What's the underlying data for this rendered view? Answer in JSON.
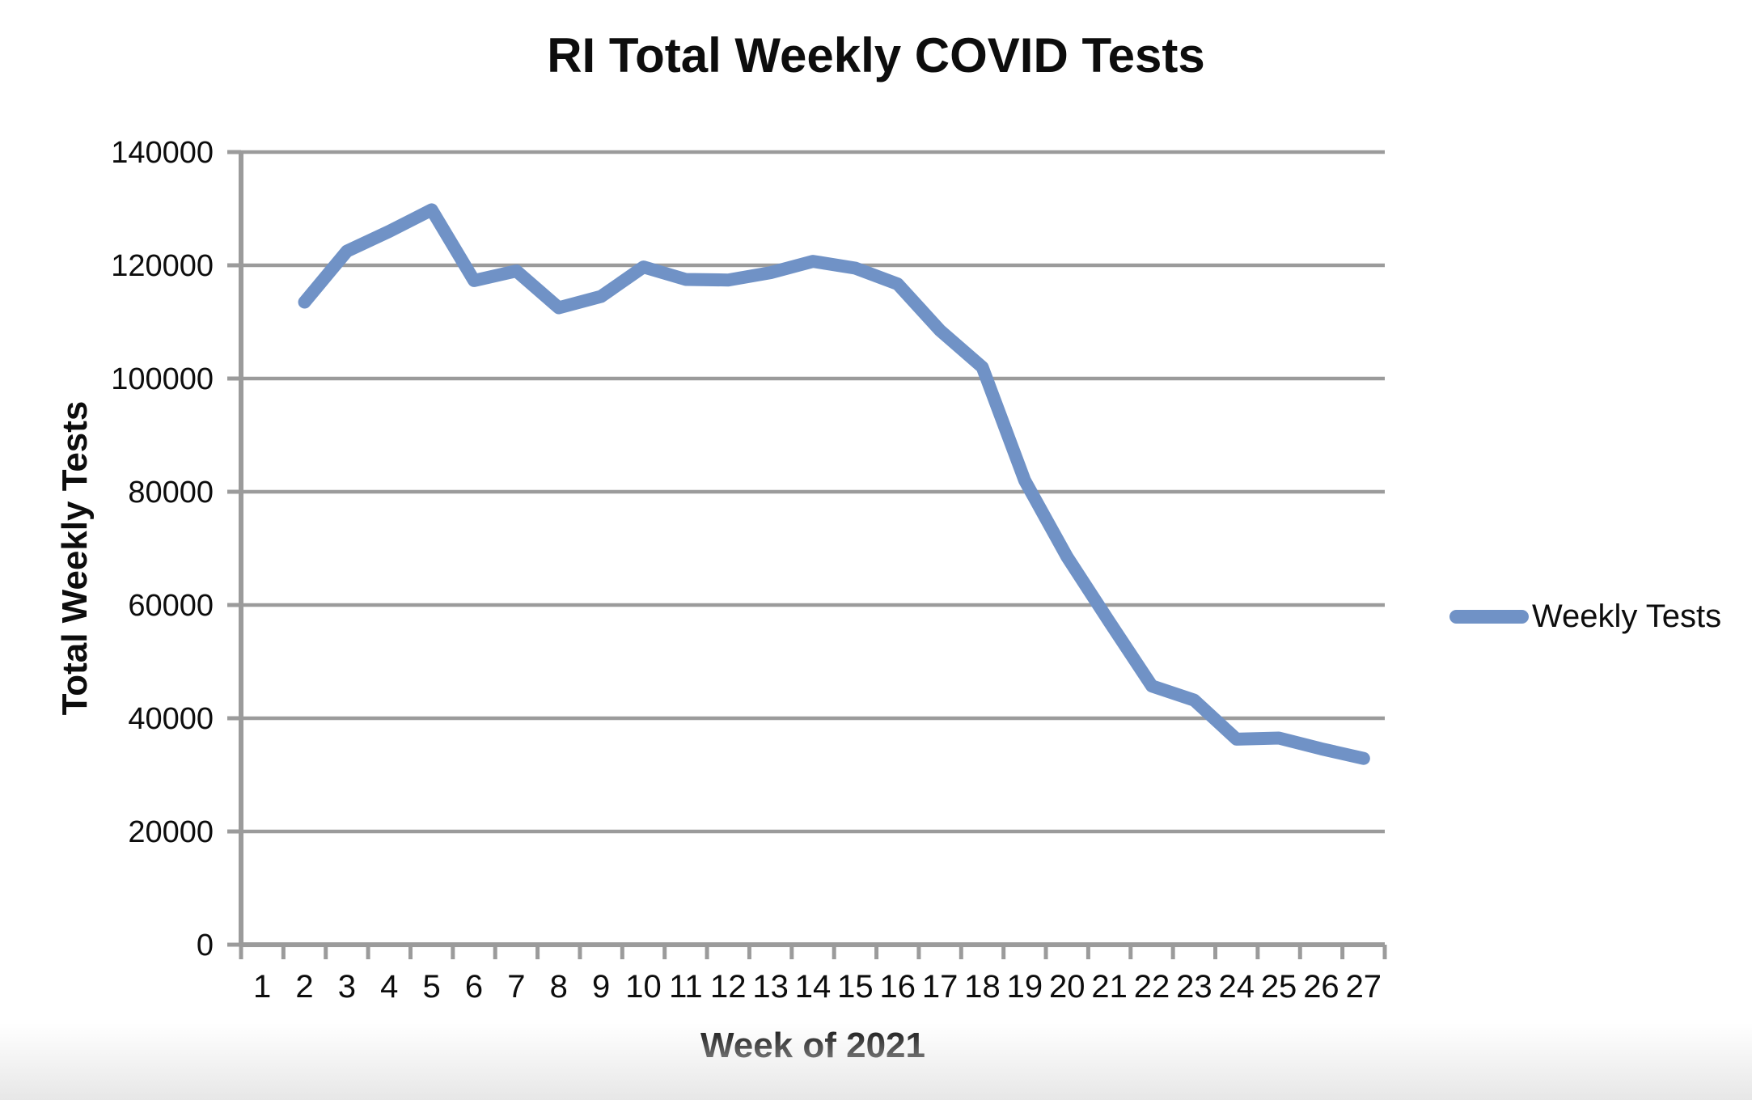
{
  "chart_data": {
    "type": "line",
    "title": "RI Total Weekly COVID Tests",
    "xlabel": "Week of 2021",
    "ylabel": "Total Weekly Tests",
    "categories": [
      "1",
      "2",
      "3",
      "4",
      "5",
      "6",
      "7",
      "8",
      "9",
      "10",
      "11",
      "12",
      "13",
      "14",
      "15",
      "16",
      "17",
      "18",
      "19",
      "20",
      "21",
      "22",
      "23",
      "24",
      "25",
      "26",
      "27"
    ],
    "series": [
      {
        "name": "Weekly Tests",
        "points": [
          {
            "week": 2,
            "value": 113500
          },
          {
            "week": 3,
            "value": 122500
          },
          {
            "week": 4,
            "value": 126000
          },
          {
            "week": 5,
            "value": 129800
          },
          {
            "week": 6,
            "value": 117300
          },
          {
            "week": 7,
            "value": 119000
          },
          {
            "week": 8,
            "value": 112500
          },
          {
            "week": 9,
            "value": 114500
          },
          {
            "week": 10,
            "value": 119700
          },
          {
            "week": 11,
            "value": 117500
          },
          {
            "week": 12,
            "value": 117400
          },
          {
            "week": 13,
            "value": 118700
          },
          {
            "week": 14,
            "value": 120700
          },
          {
            "week": 15,
            "value": 119500
          },
          {
            "week": 16,
            "value": 116700
          },
          {
            "week": 17,
            "value": 108500
          },
          {
            "week": 18,
            "value": 102000
          },
          {
            "week": 19,
            "value": 82000
          },
          {
            "week": 20,
            "value": 68500
          },
          {
            "week": 21,
            "value": 57000
          },
          {
            "week": 22,
            "value": 45700
          },
          {
            "week": 23,
            "value": 43200
          },
          {
            "week": 24,
            "value": 36300
          },
          {
            "week": 25,
            "value": 36500
          },
          {
            "week": 26,
            "value": 34600
          },
          {
            "week": 27,
            "value": 32900
          }
        ]
      }
    ],
    "ylim": [
      0,
      140000
    ],
    "y_ticks": [
      0,
      20000,
      40000,
      60000,
      80000,
      100000,
      120000,
      140000
    ],
    "grid": "horizontal",
    "legend_position": "right",
    "colors": {
      "line": "#7092C6",
      "axis": "#9B9B9B",
      "text": "#0d0d0d"
    }
  }
}
